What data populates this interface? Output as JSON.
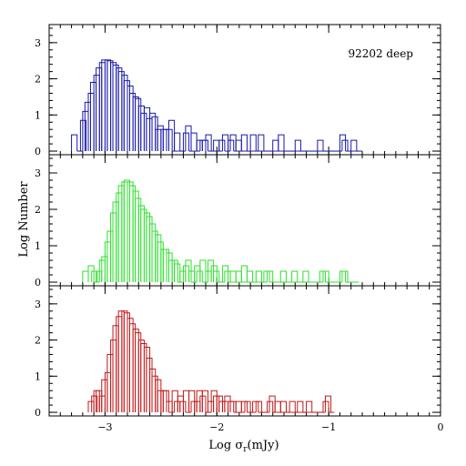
{
  "chart_data": {
    "type": "histogram",
    "annotation": "92202 deep",
    "xlabel_main": "Log σ",
    "xlabel_sub": "r",
    "xlabel_unit": "(mJy)",
    "ylabel": "Log Number",
    "xlim": [
      -3.5,
      0
    ],
    "ylim": [
      -0.1,
      3.5
    ],
    "x_ticks": [
      -3,
      -2,
      -1,
      0
    ],
    "x_tick_labels": [
      "−3",
      "−2",
      "−1",
      "0"
    ],
    "y_ticks": [
      0,
      1,
      2,
      3
    ],
    "y_tick_labels": [
      "0",
      "1",
      "2",
      "3"
    ],
    "panels": [
      {
        "color": "#1a1aa8",
        "x": [
          -3.3,
          -3.25,
          -3.22,
          -3.2,
          -3.18,
          -3.15,
          -3.13,
          -3.1,
          -3.08,
          -3.05,
          -3.03,
          -3.0,
          -2.98,
          -2.95,
          -2.93,
          -2.9,
          -2.88,
          -2.85,
          -2.83,
          -2.8,
          -2.78,
          -2.75,
          -2.73,
          -2.7,
          -2.68,
          -2.65,
          -2.63,
          -2.6,
          -2.58,
          -2.55,
          -2.53,
          -2.5,
          -2.48,
          -2.45,
          -2.43,
          -2.4,
          -2.38,
          -2.35,
          -2.33,
          -2.3,
          -2.28,
          -2.25,
          -2.23,
          -2.2,
          -2.18,
          -2.15,
          -2.13,
          -2.1,
          -2.08,
          -2.05,
          -2.03,
          -2.0,
          -1.98,
          -1.95,
          -1.93,
          -1.9,
          -1.88,
          -1.85,
          -1.83,
          -1.8,
          -1.78,
          -1.75,
          -1.73,
          -1.7,
          -1.68,
          -1.65,
          -1.63,
          -1.6,
          -1.58,
          -1.55,
          -1.53,
          -1.5,
          -1.48,
          -1.45,
          -1.43,
          -1.4,
          -1.38,
          -1.35,
          -1.33,
          -1.3,
          -1.28,
          -1.25,
          -1.23,
          -1.2,
          -1.18,
          -1.15,
          -1.13,
          -1.1,
          -1.08,
          -1.05,
          -1.03,
          -1.0,
          -0.98,
          -0.95,
          -0.93,
          -0.9,
          -0.88,
          -0.85,
          -0.83,
          -0.8,
          -0.78,
          -0.75
        ],
        "y": [
          0.45,
          0.0,
          0.85,
          1.1,
          1.35,
          1.6,
          1.9,
          2.1,
          2.3,
          2.45,
          2.52,
          2.52,
          2.5,
          2.45,
          2.38,
          2.3,
          2.2,
          2.1,
          1.95,
          1.8,
          1.6,
          1.5,
          1.45,
          1.25,
          1.05,
          1.2,
          0.9,
          1.05,
          0.95,
          0.6,
          0.7,
          0.6,
          0.6,
          0.6,
          0.85,
          0.0,
          0.5,
          0.0,
          0.0,
          0.5,
          0.7,
          0.0,
          0.5,
          0.0,
          0.3,
          0.3,
          0.3,
          0.45,
          0.0,
          0.0,
          0.3,
          0.0,
          0.3,
          0.45,
          0.0,
          0.3,
          0.45,
          0.0,
          0.3,
          0.0,
          0.45,
          0.0,
          0.0,
          0.45,
          0.0,
          0.0,
          0.45,
          0.0,
          0.0,
          0.0,
          0.0,
          0.3,
          0.0,
          0.45,
          0.0,
          0.0,
          0.0,
          0.0,
          0.0,
          0.3,
          0.0,
          0.0,
          0.0,
          0.0,
          0.0,
          0.0,
          0.0,
          0.3,
          0.0,
          0.0,
          0.0,
          0.0,
          0.0,
          0.0,
          0.0,
          0.45,
          0.3,
          0.0,
          0.0,
          0.3,
          0.0,
          0.0
        ]
      },
      {
        "color": "#2ee02e",
        "x": [
          -3.2,
          -3.15,
          -3.12,
          -3.1,
          -3.08,
          -3.05,
          -3.03,
          -3.0,
          -2.98,
          -2.95,
          -2.93,
          -2.9,
          -2.88,
          -2.85,
          -2.83,
          -2.8,
          -2.78,
          -2.75,
          -2.73,
          -2.7,
          -2.68,
          -2.65,
          -2.63,
          -2.6,
          -2.58,
          -2.55,
          -2.53,
          -2.5,
          -2.48,
          -2.45,
          -2.43,
          -2.4,
          -2.38,
          -2.35,
          -2.33,
          -2.3,
          -2.28,
          -2.25,
          -2.23,
          -2.2,
          -2.18,
          -2.15,
          -2.13,
          -2.1,
          -2.08,
          -2.05,
          -2.03,
          -2.0,
          -1.98,
          -1.95,
          -1.93,
          -1.9,
          -1.88,
          -1.85,
          -1.83,
          -1.8,
          -1.78,
          -1.75,
          -1.73,
          -1.7,
          -1.68,
          -1.65,
          -1.63,
          -1.6,
          -1.58,
          -1.55,
          -1.53,
          -1.5,
          -1.48,
          -1.45,
          -1.43,
          -1.4,
          -1.38,
          -1.35,
          -1.33,
          -1.3,
          -1.28,
          -1.25,
          -1.23,
          -1.2,
          -1.18,
          -1.15,
          -1.13,
          -1.1,
          -1.08,
          -1.05,
          -1.03,
          -1.0,
          -0.98,
          -0.95,
          -0.93,
          -0.9,
          -0.88,
          -0.85,
          -0.83,
          -0.8,
          -0.78
        ],
        "y": [
          0.3,
          0.45,
          0.3,
          0.0,
          0.3,
          0.6,
          0.7,
          1.1,
          1.4,
          1.9,
          2.2,
          2.45,
          2.65,
          2.75,
          2.8,
          2.75,
          2.65,
          2.5,
          2.3,
          2.1,
          2.0,
          1.9,
          1.8,
          1.6,
          1.4,
          1.3,
          1.1,
          0.9,
          0.9,
          0.8,
          0.6,
          0.6,
          0.5,
          0.0,
          0.3,
          0.45,
          0.6,
          0.3,
          0.0,
          0.45,
          0.3,
          0.6,
          0.0,
          0.3,
          0.6,
          0.45,
          0.3,
          0.0,
          0.0,
          0.45,
          0.3,
          0.0,
          0.3,
          0.0,
          0.3,
          0.0,
          0.45,
          0.0,
          0.3,
          0.0,
          0.0,
          0.3,
          0.0,
          0.0,
          0.3,
          0.3,
          0.0,
          0.0,
          0.0,
          0.0,
          0.3,
          0.0,
          0.0,
          0.0,
          0.3,
          0.0,
          0.0,
          0.0,
          0.3,
          0.0,
          0.0,
          0.0,
          0.0,
          0.0,
          0.3,
          0.3,
          0.0,
          0.0,
          0.0,
          0.0,
          0.0,
          0.3,
          0.3,
          0.0,
          0.0,
          0.0,
          0.0
        ]
      },
      {
        "color": "#c01a1a",
        "x": [
          -3.15,
          -3.12,
          -3.1,
          -3.08,
          -3.05,
          -3.03,
          -3.0,
          -2.98,
          -2.95,
          -2.93,
          -2.9,
          -2.88,
          -2.85,
          -2.83,
          -2.8,
          -2.78,
          -2.75,
          -2.73,
          -2.7,
          -2.68,
          -2.65,
          -2.63,
          -2.6,
          -2.58,
          -2.55,
          -2.53,
          -2.5,
          -2.48,
          -2.45,
          -2.43,
          -2.4,
          -2.38,
          -2.35,
          -2.33,
          -2.3,
          -2.28,
          -2.25,
          -2.23,
          -2.2,
          -2.18,
          -2.15,
          -2.13,
          -2.1,
          -2.08,
          -2.05,
          -2.03,
          -2.0,
          -1.98,
          -1.95,
          -1.93,
          -1.9,
          -1.88,
          -1.85,
          -1.83,
          -1.8,
          -1.78,
          -1.75,
          -1.73,
          -1.7,
          -1.68,
          -1.65,
          -1.63,
          -1.6,
          -1.58,
          -1.55,
          -1.53,
          -1.5,
          -1.48,
          -1.45,
          -1.43,
          -1.4,
          -1.38,
          -1.35,
          -1.33,
          -1.3,
          -1.28,
          -1.25,
          -1.23,
          -1.2,
          -1.18,
          -1.15,
          -1.13,
          -1.1,
          -1.08,
          -1.05,
          -1.03,
          -1.0
        ],
        "y": [
          0.3,
          0.45,
          0.6,
          0.6,
          0.45,
          0.9,
          1.1,
          1.6,
          2.0,
          2.4,
          2.65,
          2.8,
          2.8,
          2.75,
          2.6,
          2.45,
          2.3,
          2.2,
          2.0,
          1.9,
          1.8,
          1.5,
          1.2,
          1.0,
          0.9,
          0.6,
          0.6,
          0.6,
          0.3,
          0.0,
          0.6,
          0.3,
          0.45,
          0.3,
          0.6,
          0.0,
          0.6,
          0.3,
          0.3,
          0.6,
          0.45,
          0.6,
          0.0,
          0.3,
          0.6,
          0.45,
          0.45,
          0.3,
          0.3,
          0.45,
          0.3,
          0.3,
          0.0,
          0.3,
          0.0,
          0.3,
          0.3,
          0.0,
          0.0,
          0.3,
          0.3,
          0.0,
          0.0,
          0.0,
          0.3,
          0.45,
          0.0,
          0.3,
          0.0,
          0.3,
          0.0,
          0.0,
          0.3,
          0.0,
          0.0,
          0.3,
          0.0,
          0.0,
          0.3,
          0.0,
          0.0,
          0.0,
          0.0,
          0.0,
          0.3,
          0.45,
          0.0
        ]
      }
    ]
  }
}
